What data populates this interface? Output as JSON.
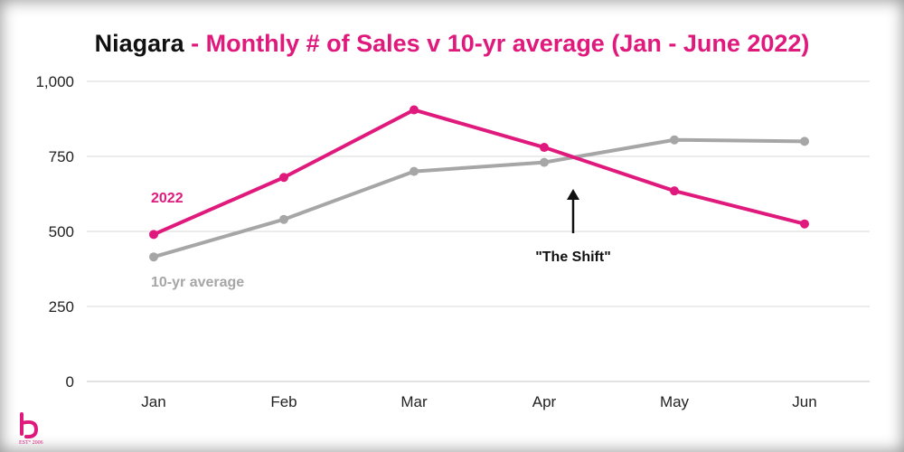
{
  "title": {
    "brand": "Niagara",
    "rest": " - Monthly # of Sales v 10-yr average (Jan - June 2022)"
  },
  "colors": {
    "series_2022": "#e0197d",
    "series_avg": "#a6a6a6",
    "grid": "#d9d9d9",
    "axis_text": "#222222"
  },
  "annotation": {
    "text": "\"The Shift\""
  },
  "logo": {
    "text": "EST° 2006",
    "icon": "brand-b-logo-icon"
  },
  "chart_data": {
    "type": "line",
    "title": "Niagara - Monthly # of Sales v 10-yr average (Jan - June 2022)",
    "categories": [
      "Jan",
      "Feb",
      "Mar",
      "Apr",
      "May",
      "Jun"
    ],
    "ylim": [
      0,
      1000
    ],
    "yticks": [
      0,
      250,
      500,
      750,
      1000
    ],
    "ytick_labels": [
      "0",
      "250",
      "500",
      "750",
      "1,000"
    ],
    "grid": true,
    "series": [
      {
        "name": "2022",
        "values": [
          490,
          680,
          905,
          780,
          635,
          525
        ]
      },
      {
        "name": "10-yr average",
        "values": [
          415,
          540,
          700,
          730,
          805,
          800
        ]
      }
    ]
  }
}
